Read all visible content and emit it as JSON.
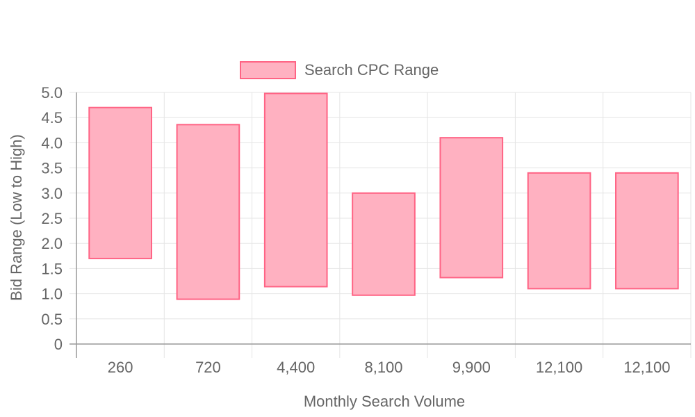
{
  "chart_data": {
    "type": "bar",
    "subtype": "floating-range",
    "categories": [
      "260",
      "720",
      "4,400",
      "8,100",
      "9,900",
      "12,100",
      "12,100"
    ],
    "series": [
      {
        "name": "Search CPC Range",
        "low": [
          1.7,
          0.89,
          1.14,
          0.97,
          1.32,
          1.1,
          1.1
        ],
        "high": [
          4.7,
          4.36,
          4.98,
          3.0,
          4.1,
          3.4,
          3.4
        ]
      }
    ],
    "xlabel": "Monthly Search Volume",
    "ylabel": "Bid Range (Low to High)",
    "ylim": [
      0,
      5
    ],
    "yticks": [
      "0",
      "0.5",
      "1.0",
      "1.5",
      "2.0",
      "2.5",
      "3.0",
      "3.5",
      "4.0",
      "4.5",
      "5.0"
    ],
    "grid": true,
    "legend_position": "top-center",
    "colors": {
      "bar_fill": "#ffb1c1",
      "bar_stroke": "#ff6384",
      "grid": "#e5e5e5",
      "axis": "#999999",
      "text": "#666666"
    }
  }
}
